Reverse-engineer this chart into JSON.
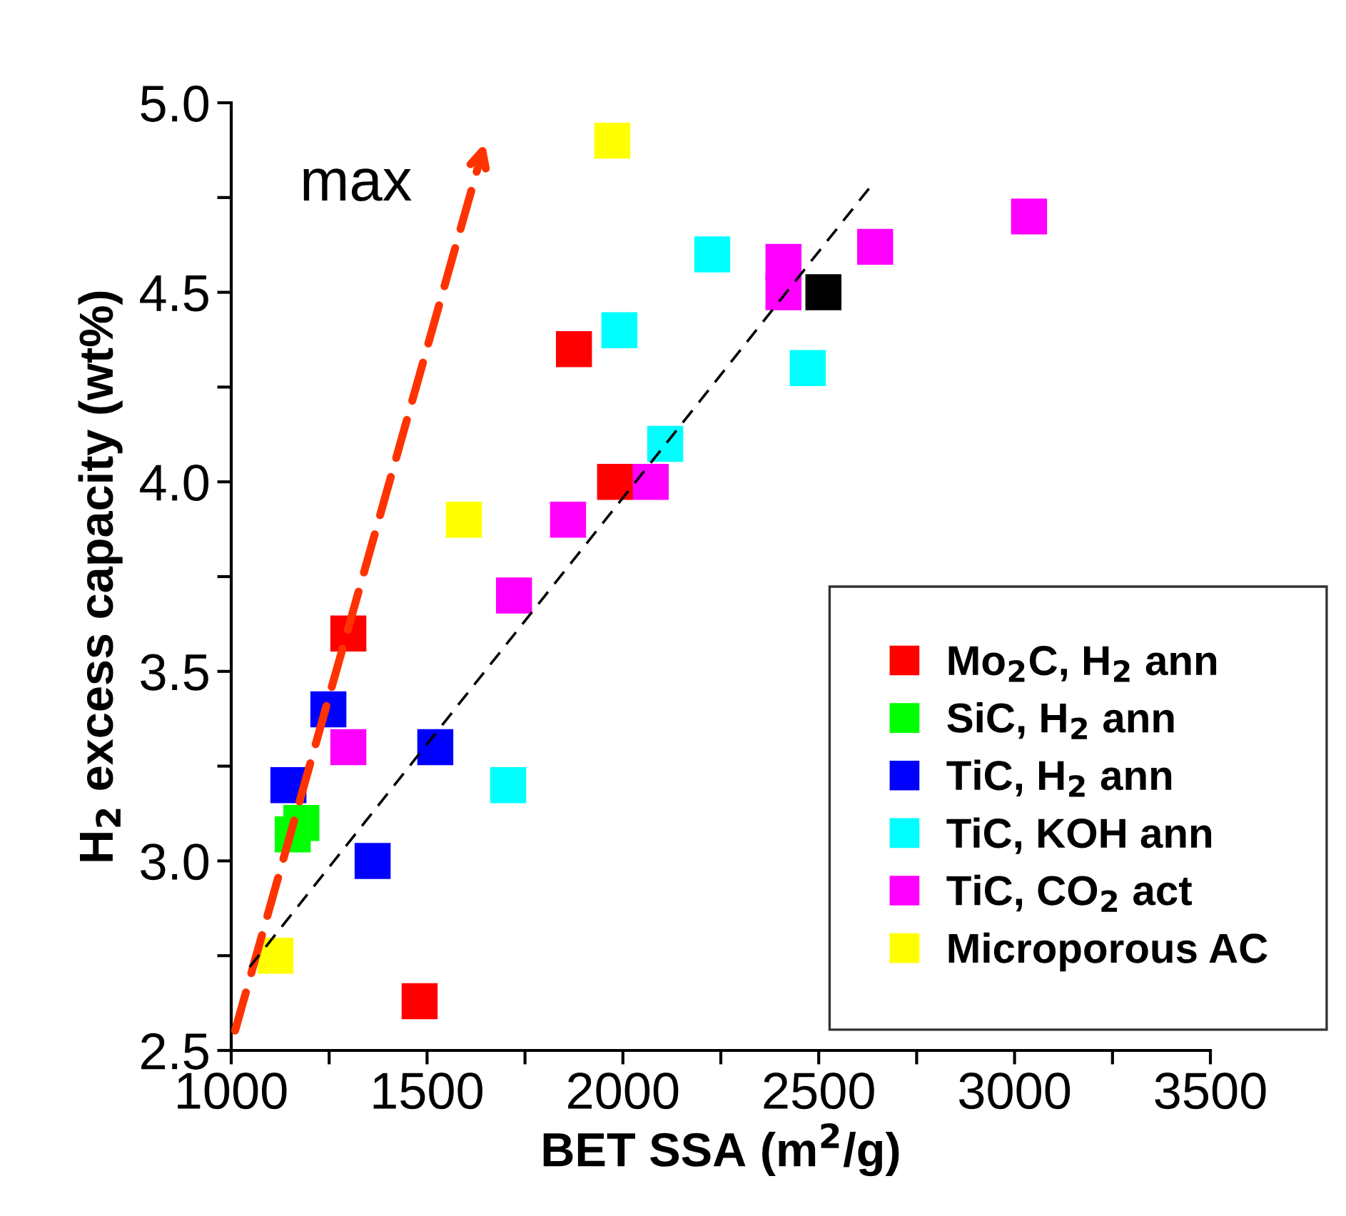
{
  "chart_data": {
    "type": "scatter",
    "xlabel": "BET SSA (m$^{2}$/g)",
    "ylabel": "H$_{2}$ excess capacity (wt%)",
    "marker": "square",
    "legend": "bottom right",
    "grid": false,
    "xlim": [
      1000,
      3500
    ],
    "ylim": [
      2.5,
      5.0
    ],
    "xticks": [
      1000,
      {
        "value": 1250,
        "label": null
      },
      1500,
      {
        "value": 1750,
        "label": null
      },
      2000,
      {
        "value": 2250,
        "label": null
      },
      2500,
      {
        "value": 2750,
        "label": null
      },
      3000,
      {
        "value": 3250,
        "label": null
      },
      3500
    ],
    "yticks": [
      {
        "value": 2.5,
        "label": "2.5"
      },
      {
        "value": 2.75,
        "label": null
      },
      {
        "value": 3.0,
        "label": "3.0"
      },
      {
        "value": 3.25,
        "label": null
      },
      {
        "value": 3.5,
        "label": "3.5"
      },
      {
        "value": 3.75,
        "label": null
      },
      {
        "value": 4.0,
        "label": "4.0"
      },
      {
        "value": 4.25,
        "label": null
      },
      {
        "value": 4.5,
        "label": "4.5"
      },
      {
        "value": 4.75,
        "label": null
      },
      {
        "value": 5.0,
        "label": "5.0"
      }
    ],
    "series": [
      {
        "color": "#000000",
        "x": [
          2512
        ],
        "values": [
          4.5
        ]
      },
      {
        "name": "Mo$_{2}$C, H$_{2}$ ann",
        "color": "#ff0000",
        "x": [
          1875,
          1980,
          1299,
          1481
        ],
        "values": [
          4.35,
          4.0,
          3.6,
          2.63
        ]
      },
      {
        "name": "SiC, H$_{2}$ ann",
        "color": "#00ff00",
        "x": [
          1179,
          1157
        ],
        "values": [
          3.1,
          3.07
        ]
      },
      {
        "name": "TiC, H$_{2}$ ann",
        "color": "#0000ff",
        "x": [
          1248,
          1146,
          1521,
          1361
        ],
        "values": [
          3.4,
          3.2,
          3.3,
          3.0
        ]
      },
      {
        "name": "TiC, KOH ann",
        "color": "#00ffff",
        "x": [
          2228,
          1991,
          2108,
          1707,
          2472
        ],
        "values": [
          4.6,
          4.4,
          4.1,
          3.2,
          4.3
        ]
      },
      {
        "name": "TiC, CO$_{2}$ act",
        "color": "#ff00ff",
        "x": [
          1860,
          2071,
          1722,
          1299,
          2410,
          2410,
          2644,
          3037
        ],
        "values": [
          3.9,
          4.0,
          3.7,
          3.3,
          4.58,
          4.5,
          4.62,
          4.7
        ]
      },
      {
        "name": "Microporous AC",
        "color": "#ffff00",
        "x": [
          1973,
          1594,
          1113
        ],
        "values": [
          4.9,
          3.9,
          2.75
        ]
      },
      {
        "type": "line",
        "color": "#000000",
        "line_style": "dashed",
        "marker": "none",
        "x": [
          1047,
          2633
        ],
        "values": [
          2.72,
          4.78
        ]
      }
    ],
    "annotations": [
      "max"
    ]
  }
}
